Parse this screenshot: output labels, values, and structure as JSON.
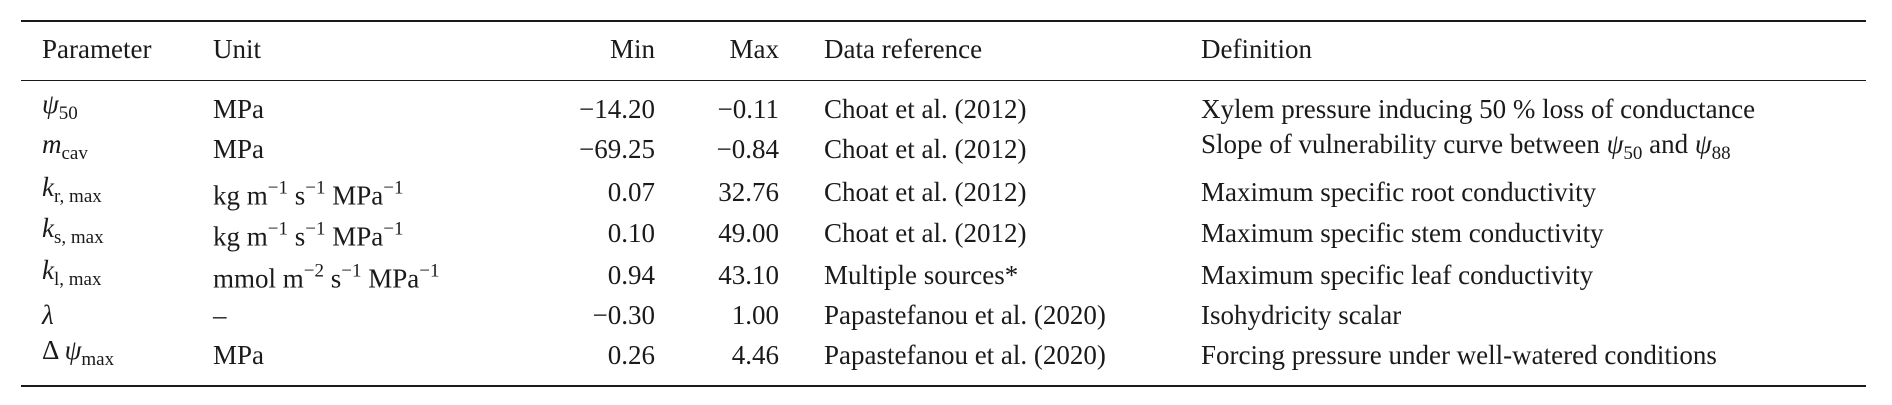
{
  "table": {
    "header": [
      "Parameter",
      "Unit",
      "Min",
      "Max",
      "Data reference",
      "Definition"
    ],
    "rows": [
      [
        [
          {
            "text": "ψ",
            "italic": true
          },
          {
            "sub": "50"
          }
        ],
        "MPa",
        "−14.20",
        "−0.11",
        "Choat et al. (2012)",
        "Xylem pressure inducing 50 % loss of conductance"
      ],
      [
        [
          {
            "text": "m",
            "italic": true
          },
          {
            "sub": "cav"
          }
        ],
        "MPa",
        "−69.25",
        "−0.84",
        "Choat et al. (2012)",
        [
          {
            "text": "Slope of vulnerability curve between "
          },
          {
            "text": "ψ",
            "italic": true
          },
          {
            "sub": "50"
          },
          {
            "text": " and "
          },
          {
            "text": "ψ",
            "italic": true
          },
          {
            "sub": "88"
          }
        ]
      ],
      [
        [
          {
            "text": "k",
            "italic": true
          },
          {
            "sub": "r, max"
          }
        ],
        [
          {
            "text": "kg m"
          },
          {
            "sup": "−1"
          },
          {
            "text": " s"
          },
          {
            "sup": "−1"
          },
          {
            "text": " MPa"
          },
          {
            "sup": "−1"
          }
        ],
        "0.07",
        "32.76",
        "Choat et al. (2012)",
        "Maximum specific root conductivity"
      ],
      [
        [
          {
            "text": "k",
            "italic": true
          },
          {
            "sub": "s, max"
          }
        ],
        [
          {
            "text": "kg m"
          },
          {
            "sup": "−1"
          },
          {
            "text": " s"
          },
          {
            "sup": "−1"
          },
          {
            "text": " MPa"
          },
          {
            "sup": "−1"
          }
        ],
        "0.10",
        "49.00",
        "Choat et al. (2012)",
        "Maximum specific stem conductivity"
      ],
      [
        [
          {
            "text": "k",
            "italic": true
          },
          {
            "sub": "l, max"
          }
        ],
        [
          {
            "text": "mmol m"
          },
          {
            "sup": "−2"
          },
          {
            "text": " s"
          },
          {
            "sup": "−1"
          },
          {
            "text": " MPa"
          },
          {
            "sup": "−1"
          }
        ],
        "0.94",
        "43.10",
        "Multiple sources*",
        "Maximum specific leaf conductivity"
      ],
      [
        [
          {
            "text": "λ",
            "italic": true
          }
        ],
        "–",
        "−0.30",
        "1.00",
        "Papastefanou et al. (2020)",
        "Isohydricity scalar"
      ],
      [
        [
          {
            "text": "Δ "
          },
          {
            "text": "ψ",
            "italic": true
          },
          {
            "sub": "max"
          }
        ],
        "MPa",
        "0.26",
        "4.46",
        "Papastefanou et al. (2020)",
        "Forcing pressure under well-watered conditions"
      ]
    ]
  }
}
